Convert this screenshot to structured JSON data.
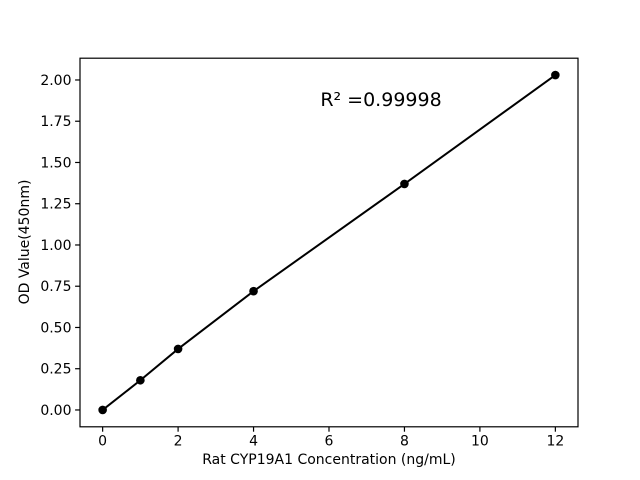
{
  "chart_data": {
    "type": "line",
    "title": "",
    "xlabel": "Rat CYP19A1 Concentration (ng/mL)",
    "ylabel": "OD Value(450nm)",
    "annotation": "R² =0.99998",
    "x": [
      0,
      1,
      2,
      4,
      8,
      12
    ],
    "y": [
      0.0,
      0.18,
      0.37,
      0.72,
      1.37,
      2.03
    ],
    "xtick_values": [
      0,
      2,
      4,
      6,
      8,
      10,
      12
    ],
    "xtick_labels": [
      "0",
      "2",
      "4",
      "6",
      "8",
      "10",
      "12"
    ],
    "ytick_values": [
      0.0,
      0.25,
      0.5,
      0.75,
      1.0,
      1.25,
      1.5,
      1.75,
      2.0
    ],
    "ytick_labels": [
      "0.00",
      "0.25",
      "0.50",
      "0.75",
      "1.00",
      "1.25",
      "1.50",
      "1.75",
      "2.00"
    ],
    "xlim": [
      -0.6,
      12.6
    ],
    "ylim": [
      -0.102,
      2.132
    ],
    "grid": false,
    "legend": null,
    "line_color": "#000000",
    "marker": "circle",
    "marker_color": "#000000",
    "axis_color": "#000000",
    "background_color": "#ffffff"
  }
}
